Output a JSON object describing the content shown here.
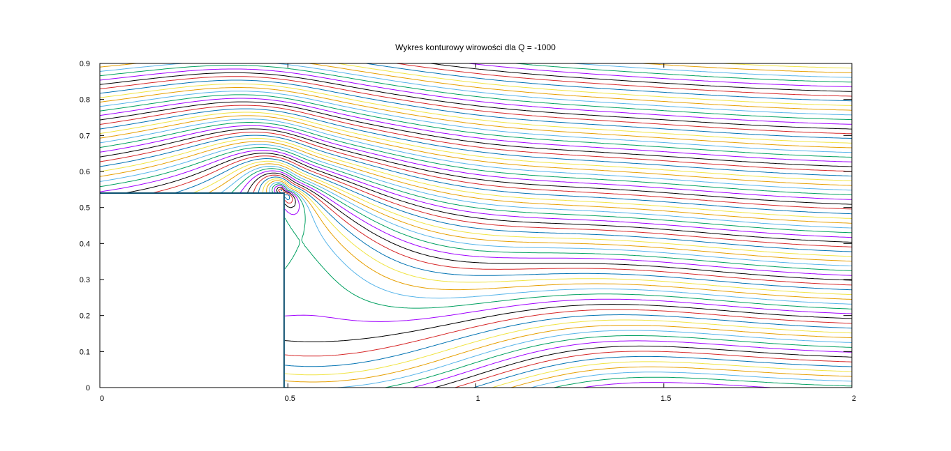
{
  "chart_data": {
    "type": "contour",
    "title": "Wykres konturowy wirowości dla Q = -1000",
    "xlabel": "",
    "ylabel": "",
    "xlim": [
      0,
      2
    ],
    "ylim": [
      0,
      0.9
    ],
    "x_ticks": [
      0,
      0.5,
      1,
      1.5,
      2
    ],
    "x_tick_labels": [
      "0",
      "0.5",
      "1",
      "1.5",
      "2"
    ],
    "y_ticks": [
      0,
      0.1,
      0.2,
      0.3,
      0.4,
      0.5,
      0.6,
      0.7,
      0.8,
      0.9
    ],
    "y_tick_labels": [
      "0",
      "0.1",
      "0.2",
      "0.3",
      "0.4",
      "0.5",
      "0.6",
      "0.7",
      "0.8",
      "0.9"
    ],
    "grid": false,
    "legend": "none",
    "colors": [
      "#a000ff",
      "#00a060",
      "#56b4e9",
      "#e69f00",
      "#f0e442",
      "#0072b2",
      "#d62728",
      "#000000"
    ],
    "obstacle": {
      "x_range": [
        0,
        0.49
      ],
      "y_range": [
        0,
        0.54
      ]
    },
    "vortex_center": [
      0.49,
      0.54
    ],
    "saddle_point": [
      0.92,
      0.2
    ]
  }
}
